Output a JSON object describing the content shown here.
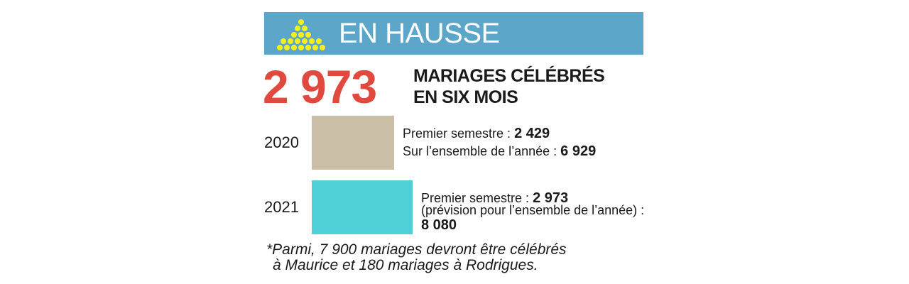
{
  "chart_data": {
    "type": "bar",
    "title": "EN HAUSSE",
    "headline": "2 973",
    "subtitle": [
      "MARIAGES CÉLÉBRÉS",
      "EN SIX MOIS"
    ],
    "categories": [
      "2020",
      "2021"
    ],
    "values": [
      2429,
      2973
    ],
    "value_labels": [
      "2 429",
      "2 973"
    ],
    "value_prefix": "Premier semestre :",
    "notes": [
      {
        "text": "Sur l’ensemble de l’année :",
        "value": "6 929"
      },
      {
        "text": "(prévision pour l’ensemble de l’année) :",
        "value": "8 080"
      }
    ],
    "colors": [
      "#cbbfa7",
      "#4fd0d6"
    ],
    "header_color": "#5ba6c9",
    "headline_color": "#e1493f",
    "footnote": [
      "*Parmi, 7 900 mariages devront être célébrés",
      "à Maurice et 180 mariages à Rodrigues."
    ]
  }
}
